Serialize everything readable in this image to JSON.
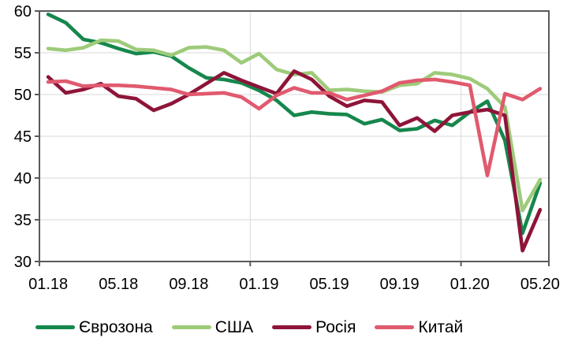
{
  "chart_data": {
    "type": "line",
    "title": "",
    "x_tick_labels": [
      "01.18",
      "05.18",
      "09.18",
      "01.19",
      "05.19",
      "09.19",
      "01.20",
      "05.20"
    ],
    "x_label_every": 4,
    "n_points": 29,
    "ylim": [
      30,
      60
    ],
    "y_ticks": [
      30,
      35,
      40,
      45,
      50,
      55,
      60
    ],
    "grid": {
      "horizontal": true,
      "vertical_year_boundaries": [
        12,
        24
      ]
    },
    "legend_position": "bottom",
    "axis_color": "#595959",
    "gridline_color": "#d9d9d9",
    "text_color": "#000000",
    "series": [
      {
        "name": "Єврозона",
        "color": "#16874c",
        "values": [
          59.6,
          58.6,
          56.6,
          56.2,
          55.5,
          54.9,
          55.1,
          54.6,
          53.2,
          52.0,
          51.8,
          51.4,
          50.5,
          49.3,
          47.5,
          47.9,
          47.7,
          47.6,
          46.5,
          47.0,
          45.7,
          45.9,
          46.9,
          46.3,
          47.9,
          49.2,
          44.5,
          33.4,
          39.4
        ]
      },
      {
        "name": "США",
        "color": "#9ecb7a",
        "values": [
          55.5,
          55.3,
          55.6,
          56.5,
          56.4,
          55.4,
          55.3,
          54.7,
          55.6,
          55.7,
          55.3,
          53.8,
          54.9,
          53.0,
          52.4,
          52.6,
          50.5,
          50.6,
          50.4,
          50.3,
          51.1,
          51.3,
          52.6,
          52.4,
          51.9,
          50.7,
          48.5,
          36.1,
          39.8
        ]
      },
      {
        "name": "Росія",
        "color": "#8e1438",
        "values": [
          52.1,
          50.2,
          50.6,
          51.3,
          49.8,
          49.5,
          48.1,
          48.9,
          50.0,
          51.3,
          52.6,
          51.7,
          50.9,
          50.1,
          52.8,
          51.8,
          49.8,
          48.6,
          49.3,
          49.1,
          46.3,
          47.2,
          45.6,
          47.5,
          47.9,
          48.2,
          47.5,
          31.3,
          36.2
        ]
      },
      {
        "name": "Китай",
        "color": "#e05a6e",
        "values": [
          51.5,
          51.6,
          51.0,
          51.1,
          51.1,
          51.0,
          50.8,
          50.6,
          50.0,
          50.1,
          50.2,
          49.7,
          48.3,
          49.9,
          50.8,
          50.2,
          50.2,
          49.4,
          49.9,
          50.4,
          51.4,
          51.7,
          51.8,
          51.5,
          51.1,
          40.3,
          50.1,
          49.4,
          50.7
        ]
      }
    ]
  }
}
